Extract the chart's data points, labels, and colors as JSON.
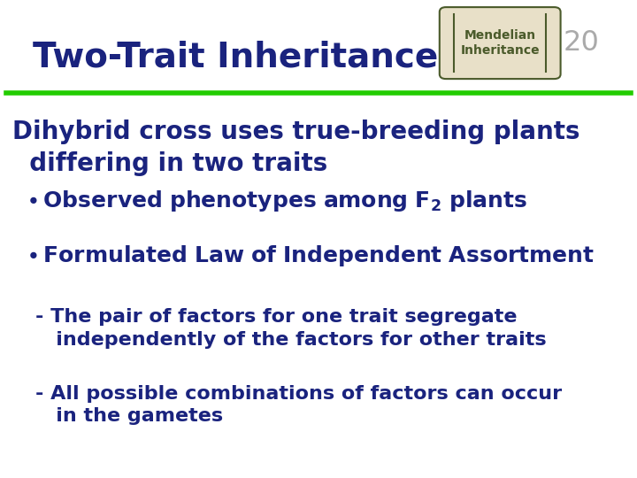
{
  "title": "Two-Trait Inheritance",
  "title_color": "#1a237e",
  "title_fontsize": 28,
  "badge_text": "Mendelian\nInheritance",
  "badge_number": "20",
  "badge_bg": "#e8e0c8",
  "badge_border": "#4a5a2a",
  "line_color": "#22cc00",
  "bg_color": "#ffffff",
  "text_color": "#1a237e",
  "heading_line1": "Dihybrid cross uses true-breeding plants",
  "heading_line2": "  differing in two traits",
  "heading_fontsize": 20,
  "bullet1_fontsize": 18,
  "bullet2_fontsize": 18,
  "sub1_line1": "- The pair of factors for one trait segregate",
  "sub1_line2": "   independently of the factors for other traits",
  "sub1_fontsize": 16,
  "sub2_line1": "- All possible combinations of factors can occur",
  "sub2_line2": "   in the gametes",
  "sub2_fontsize": 16
}
